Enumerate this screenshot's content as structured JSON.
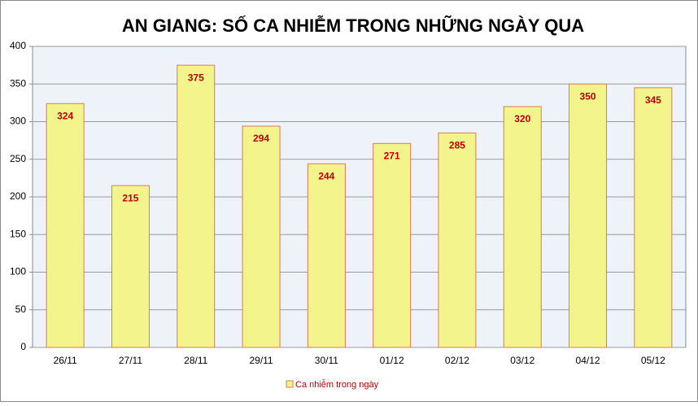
{
  "chart_data": {
    "type": "bar",
    "title": "AN GIANG: SỐ CA NHIỄM TRONG NHỮNG NGÀY QUA",
    "categories": [
      "26/11",
      "27/11",
      "28/11",
      "29/11",
      "30/11",
      "01/12",
      "02/12",
      "03/12",
      "04/12",
      "05/12"
    ],
    "series": [
      {
        "name": "Ca nhiễm trong ngày",
        "color": "#f4f48c",
        "values": [
          324,
          215,
          375,
          294,
          244,
          271,
          285,
          320,
          350,
          345
        ]
      }
    ],
    "ylim": [
      0,
      400
    ],
    "yticks": [
      0,
      50,
      100,
      150,
      200,
      250,
      300,
      350,
      400
    ],
    "grid": true,
    "legend": "bottom"
  }
}
